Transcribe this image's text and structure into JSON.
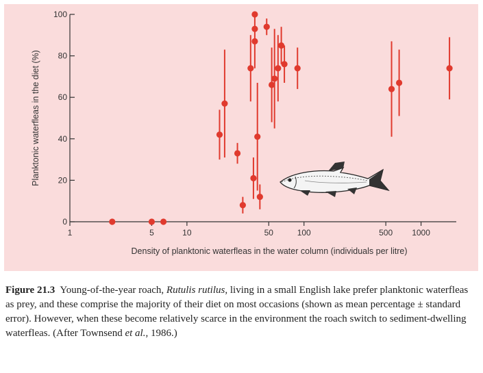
{
  "chart_data": {
    "type": "scatter",
    "xlabel": "Density of planktonic waterfleas in the water column (individuals per litre)",
    "ylabel": "Planktonic waterfleas in the diet (%)",
    "x_scale": "log",
    "xlim": [
      1,
      2000
    ],
    "ylim": [
      0,
      100
    ],
    "x_ticks": [
      1,
      5,
      10,
      50,
      100,
      500,
      1000
    ],
    "x_tick_labels": [
      "1",
      "5",
      "10",
      "50",
      "100",
      "500",
      "1000"
    ],
    "y_ticks": [
      0,
      20,
      40,
      60,
      80,
      100
    ],
    "y_tick_labels": [
      "0",
      "20",
      "40",
      "60",
      "80",
      "100"
    ],
    "grid": false,
    "legend": "none",
    "series": [
      {
        "color": "#e03a2e",
        "points": [
          {
            "x": 2.3,
            "y": 0
          },
          {
            "x": 5,
            "y": 0
          },
          {
            "x": 6.3,
            "y": 0
          },
          {
            "x": 19,
            "y": 42,
            "err": 12
          },
          {
            "x": 21,
            "y": 57,
            "err": 26
          },
          {
            "x": 27,
            "y": 33,
            "err": 5
          },
          {
            "x": 30,
            "y": 8,
            "err": 4
          },
          {
            "x": 35,
            "y": 74,
            "err": 16
          },
          {
            "x": 37,
            "y": 21,
            "err": 10
          },
          {
            "x": 38,
            "y": 87,
            "err": 13
          },
          {
            "x": 38,
            "y": 93
          },
          {
            "x": 38,
            "y": 100
          },
          {
            "x": 40,
            "y": 41,
            "err": 26
          },
          {
            "x": 42,
            "y": 12,
            "err": 6
          },
          {
            "x": 48,
            "y": 94,
            "err": 4
          },
          {
            "x": 53,
            "y": 66,
            "err": 18
          },
          {
            "x": 56,
            "y": 69,
            "err": 24
          },
          {
            "x": 60,
            "y": 74,
            "err": 16
          },
          {
            "x": 64,
            "y": 85,
            "err": 9
          },
          {
            "x": 68,
            "y": 76,
            "err": 9
          },
          {
            "x": 88,
            "y": 74,
            "err": 10
          },
          {
            "x": 560,
            "y": 64,
            "err": 23
          },
          {
            "x": 650,
            "y": 67,
            "err": 16
          },
          {
            "x": 1750,
            "y": 74,
            "err": 15
          }
        ]
      }
    ]
  },
  "illustration": {
    "icon": "roach-fish-icon"
  },
  "caption": {
    "label": "Figure 21.3",
    "segments": [
      {
        "text": " Young-of-the-year roach, ",
        "italic": false
      },
      {
        "text": "Rutulis rutilus",
        "italic": true
      },
      {
        "text": ", living in a small English lake prefer planktonic waterfleas as prey, and these comprise the majority of their diet on most occasions (shown as mean percentage ± standard error). However, when these become relatively scarce in the environment the roach switch to sediment-dwelling waterfleas. (After Townsend ",
        "italic": false
      },
      {
        "text": "et al.",
        "italic": true
      },
      {
        "text": ", 1986.)",
        "italic": false
      }
    ]
  }
}
